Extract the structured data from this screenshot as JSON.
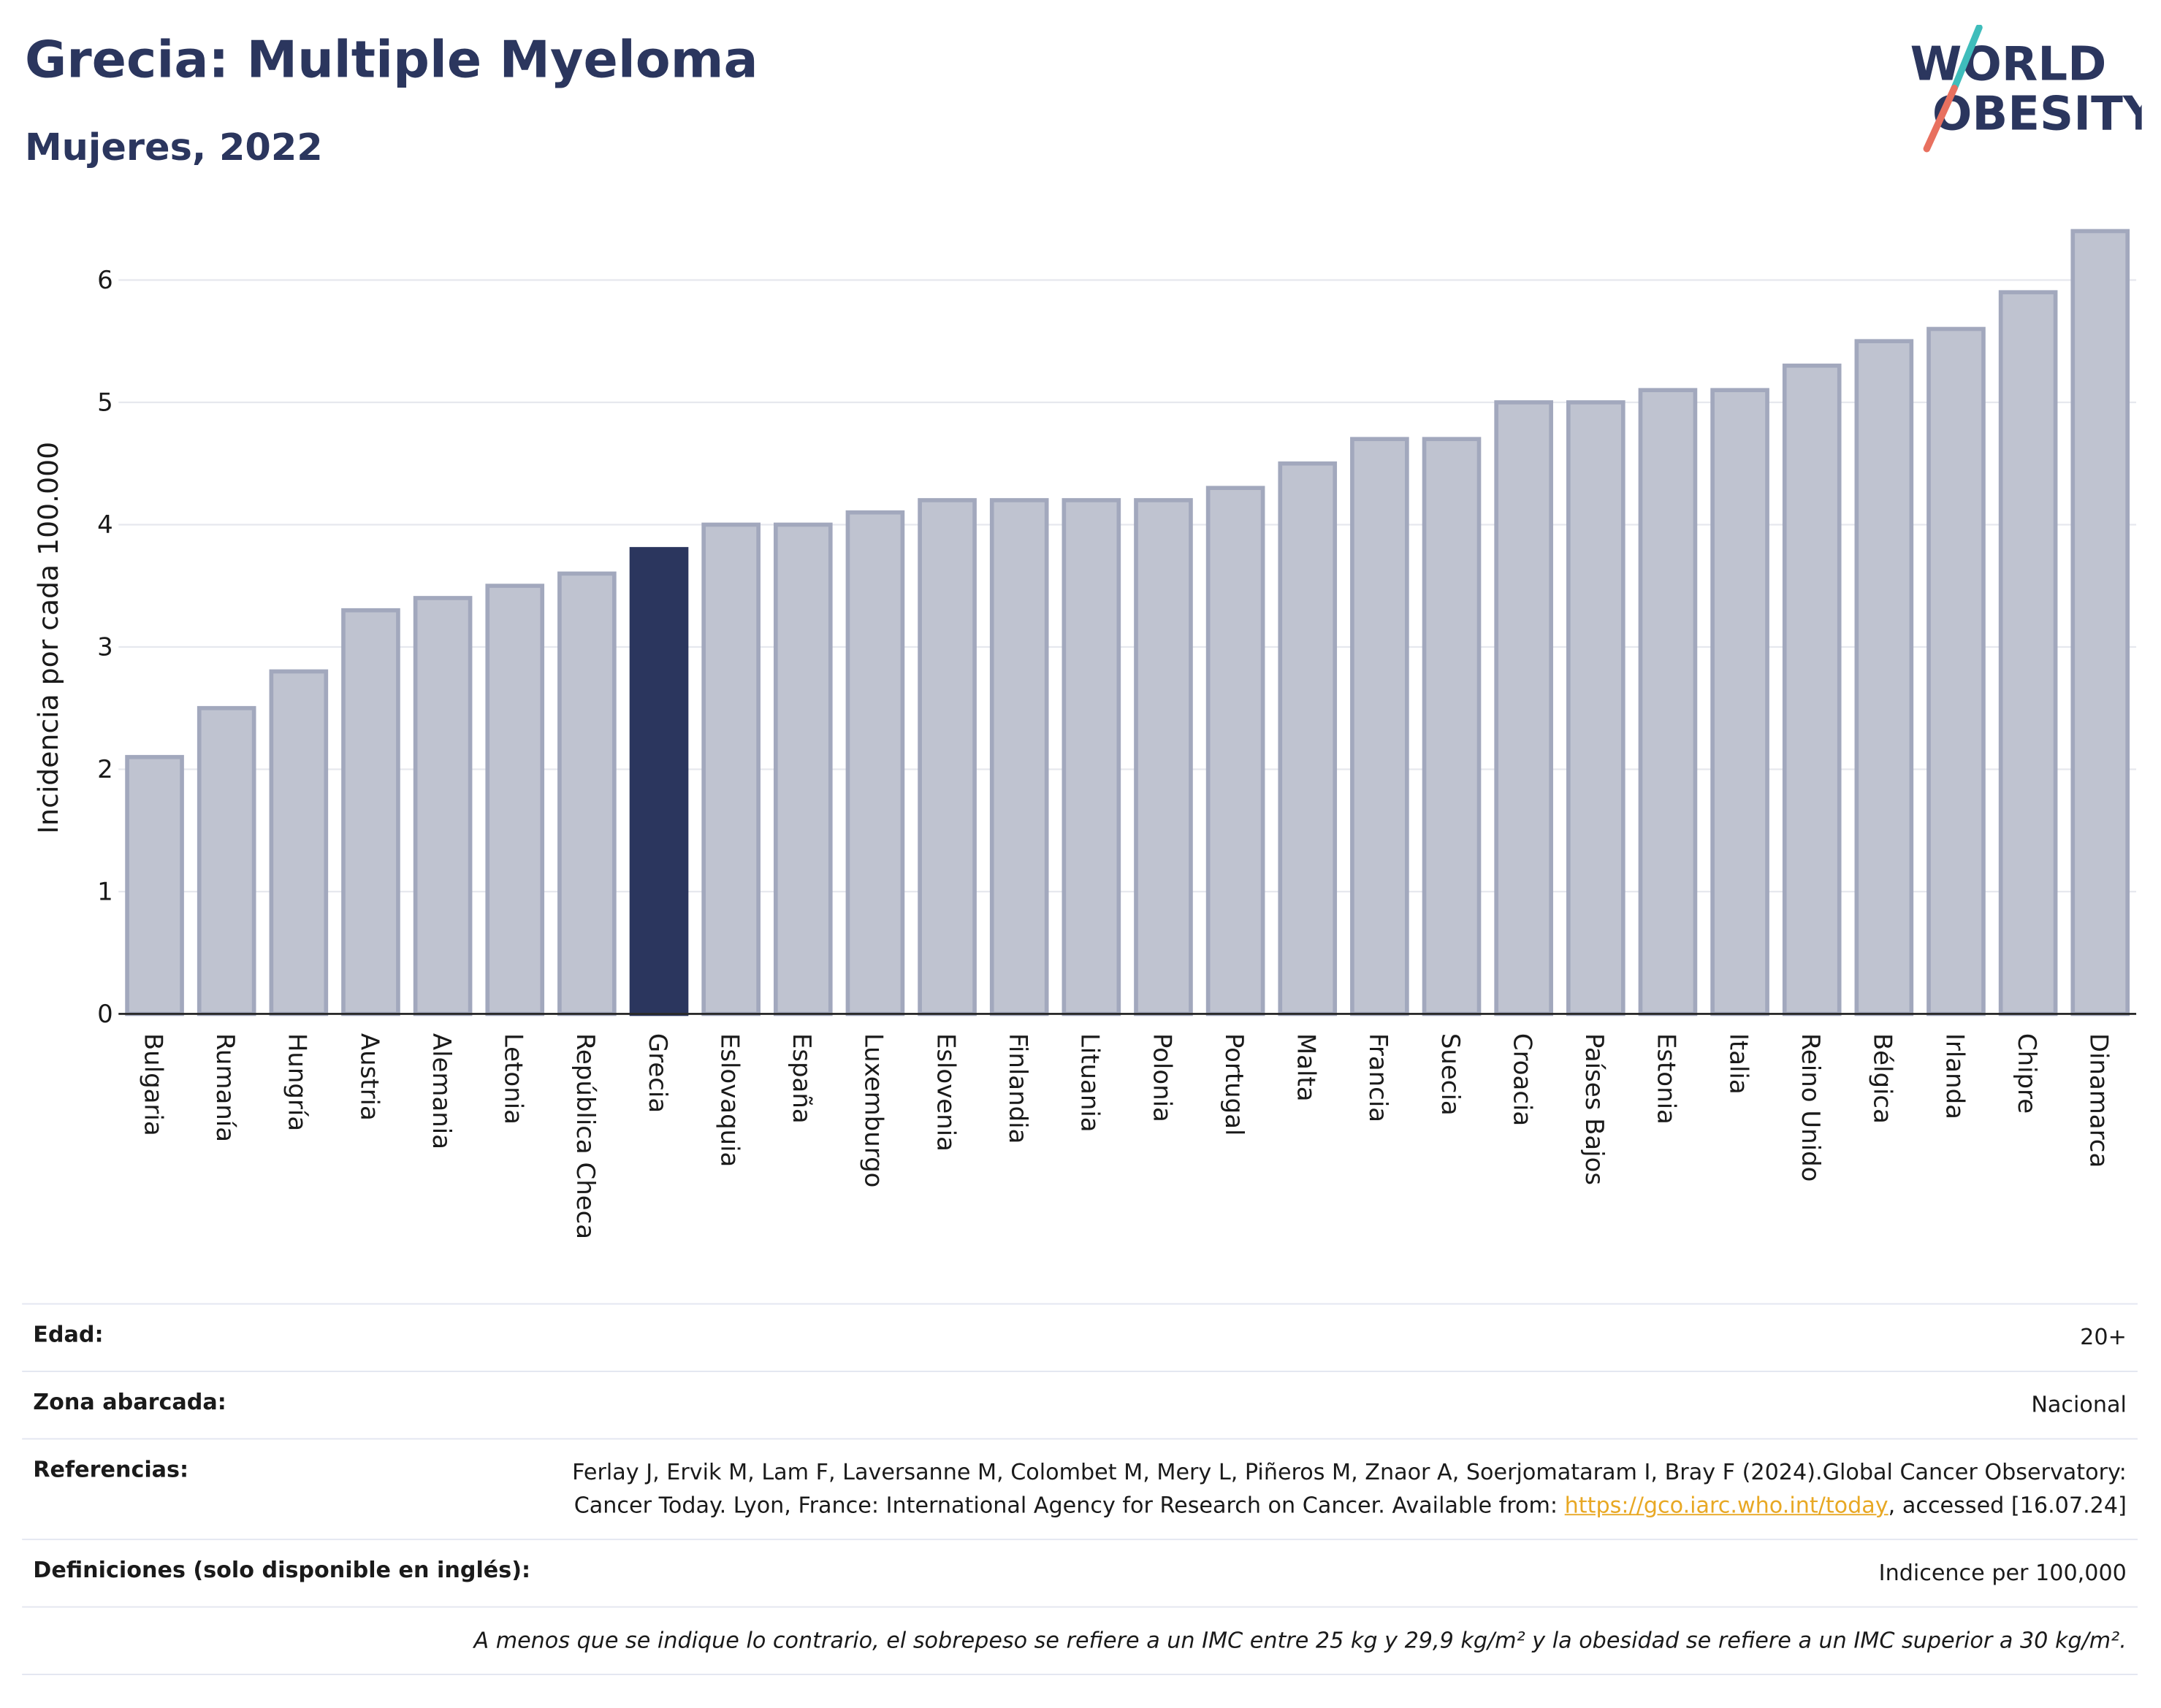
{
  "header": {
    "title": "Grecia: Multiple Myeloma",
    "subtitle": "Mujeres, 2022"
  },
  "logo": {
    "line1": "WORLD",
    "line2": "OBESITY",
    "colors": {
      "text": "#2b365e",
      "slash_top": "#3fbdbb",
      "slash_bottom": "#e8705f"
    }
  },
  "chart_data": {
    "type": "bar",
    "ylabel": "Incidencia por cada 100.000",
    "ylim": [
      0,
      6.6
    ],
    "yticks": [
      0,
      1,
      2,
      3,
      4,
      5,
      6
    ],
    "grid": true,
    "highlight": "Grecia",
    "colors": {
      "bar": "#bfc3d0",
      "bar_edge": "#a2a8bd",
      "highlight": "#2b365e",
      "grid": "#e6e8ee"
    },
    "categories": [
      "Bulgaria",
      "Rumanía",
      "Hungría",
      "Austria",
      "Alemania",
      "Letonia",
      "República Checa",
      "Grecia",
      "Eslovaquia",
      "España",
      "Luxemburgo",
      "Eslovenia",
      "Finlandia",
      "Lituania",
      "Polonia",
      "Portugal",
      "Malta",
      "Francia",
      "Suecia",
      "Croacia",
      "Países Bajos",
      "Estonia",
      "Italia",
      "Reino Unido",
      "Bélgica",
      "Irlanda",
      "Chipre",
      "Dinamarca"
    ],
    "values": [
      2.1,
      2.5,
      2.8,
      3.3,
      3.4,
      3.5,
      3.6,
      3.8,
      4.0,
      4.0,
      4.1,
      4.2,
      4.2,
      4.2,
      4.2,
      4.3,
      4.5,
      4.7,
      4.7,
      5.0,
      5.0,
      5.1,
      5.1,
      5.3,
      5.5,
      5.6,
      5.9,
      6.4
    ]
  },
  "info": {
    "age_label": "Edad:",
    "age_value": "20+",
    "area_label": "Zona abarcada:",
    "area_value": "Nacional",
    "ref_label": "Referencias:",
    "ref_text_before": "Ferlay J, Ervik M, Lam F, Laversanne M, Colombet M, Mery L, Piñeros M, Znaor A, Soerjomataram I, Bray F (2024).Global Cancer Observatory: Cancer Today. Lyon, France: International Agency for Research on Cancer. Available from: ",
    "ref_link": "https://gco.iarc.who.int/today",
    "ref_text_after": ", accessed [16.07.24]",
    "def_label": "Definiciones (solo disponible en inglés):",
    "def_value": "Indicence per 100,000",
    "note": "A menos que se indique lo contrario, el sobrepeso se refiere a un IMC entre 25 kg y 29,9 kg/m² y la obesidad se refiere a un IMC superior a 30 kg/m²."
  }
}
